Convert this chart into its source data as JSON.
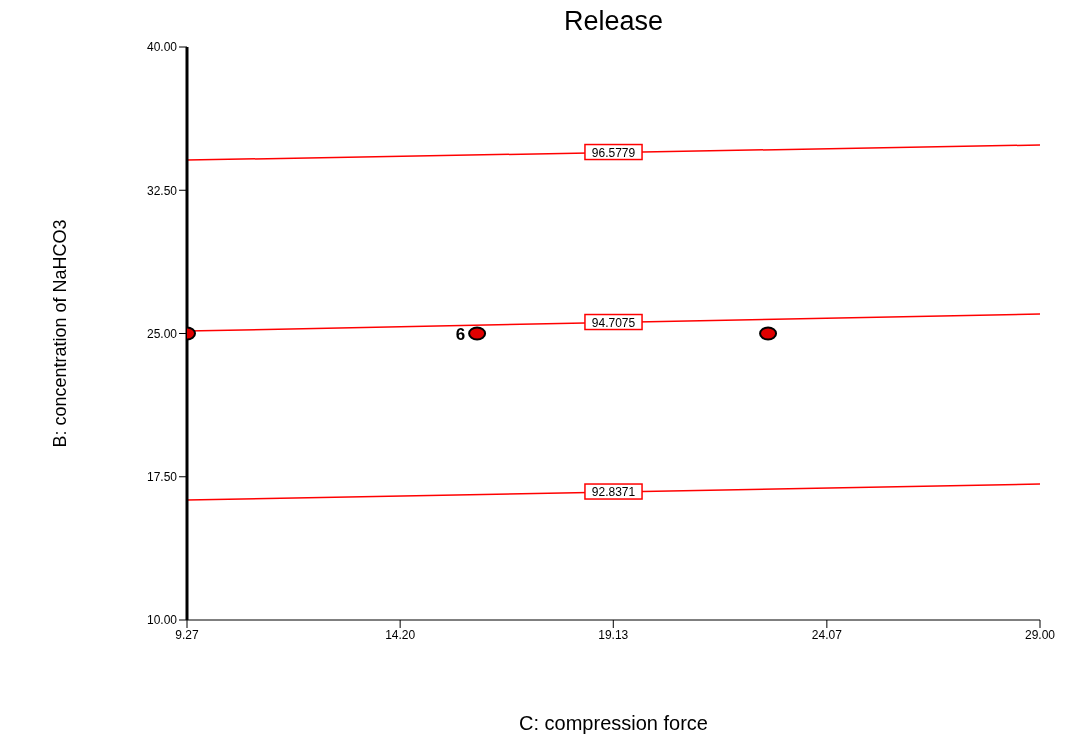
{
  "chart_data": {
    "type": "scatter",
    "title": "Release",
    "xlabel": "C: compression force",
    "ylabel": "B: concentration of NaHCO3",
    "xlim": [
      9.27,
      29
    ],
    "xticks": [
      {
        "value": 9.27,
        "label": "9.27"
      },
      {
        "value": 14.2,
        "label": "14.20"
      },
      {
        "value": 19.13,
        "label": "19.13"
      },
      {
        "value": 24.07,
        "label": "24.07"
      },
      {
        "value": 29,
        "label": "29.00"
      }
    ],
    "ylim": [
      10,
      40
    ],
    "yticks": [
      {
        "value": 10,
        "label": "10.00"
      },
      {
        "value": 17.5,
        "label": "17.50"
      },
      {
        "value": 25,
        "label": "25.00"
      },
      {
        "value": 32.5,
        "label": "32.50"
      },
      {
        "value": 40,
        "label": "40.00"
      }
    ],
    "grid": false,
    "legend": false,
    "series": [
      {
        "type": "line",
        "name": "96.5779",
        "color": "#ff0000",
        "x": [
          9.27,
          29
        ],
        "values": [
          34.08,
          34.87
        ]
      },
      {
        "type": "line",
        "name": "94.7075",
        "color": "#ff0000",
        "x": [
          9.27,
          29
        ],
        "values": [
          25.13,
          26.02
        ]
      },
      {
        "type": "line",
        "name": "92.8371",
        "color": "#ff0000",
        "x": [
          9.27,
          29
        ],
        "values": [
          16.28,
          17.12
        ]
      },
      {
        "color": "#e00000",
        "marker": "circle",
        "x": [
          9.27,
          15.98,
          22.71
        ],
        "values": [
          25,
          25,
          25
        ]
      }
    ],
    "annotations": [
      {
        "text": "6",
        "x": 15.98,
        "y": 25
      }
    ]
  }
}
